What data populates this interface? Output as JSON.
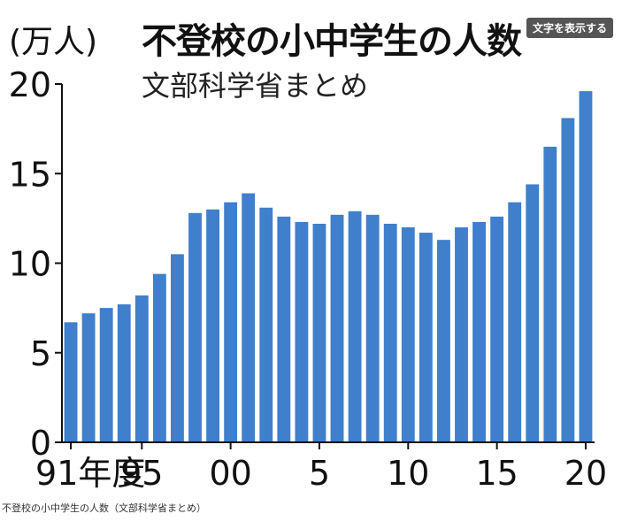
{
  "header": {
    "unit_label": "(万人)",
    "title": "不登校の小中学生の人数",
    "subtitle": "文部科学省まとめ",
    "toggle_label": "文字を表示する"
  },
  "caption": "不登校の小中学生の人数（文部科学省まとめ）",
  "colors": {
    "bar": "#3f7fcc",
    "axis": "#111111"
  },
  "chart_data": {
    "type": "bar",
    "title": "不登校の小中学生の人数",
    "subtitle": "文部科学省まとめ",
    "ylabel": "(万人)",
    "ylim": [
      0,
      20
    ],
    "yticks": [
      0,
      5,
      10,
      15,
      20
    ],
    "grid": false,
    "categories": [
      "1991",
      "1992",
      "1993",
      "1994",
      "1995",
      "1996",
      "1997",
      "1998",
      "1999",
      "2000",
      "2001",
      "2002",
      "2003",
      "2004",
      "2005",
      "2006",
      "2007",
      "2008",
      "2009",
      "2010",
      "2011",
      "2012",
      "2013",
      "2014",
      "2015",
      "2016",
      "2017",
      "2018",
      "2019",
      "2020"
    ],
    "values": [
      6.7,
      7.2,
      7.5,
      7.7,
      8.2,
      9.4,
      10.5,
      12.8,
      13.0,
      13.4,
      13.9,
      13.1,
      12.6,
      12.3,
      12.2,
      12.7,
      12.9,
      12.7,
      12.2,
      12.0,
      11.7,
      11.3,
      12.0,
      12.3,
      12.6,
      13.4,
      14.4,
      16.5,
      18.1,
      19.6
    ],
    "xtick_labels": [
      {
        "index": 0,
        "label": "91年度"
      },
      {
        "index": 4,
        "label": "95"
      },
      {
        "index": 9,
        "label": "00"
      },
      {
        "index": 14,
        "label": "5"
      },
      {
        "index": 19,
        "label": "10"
      },
      {
        "index": 24,
        "label": "15"
      },
      {
        "index": 29,
        "label": "20"
      }
    ]
  }
}
